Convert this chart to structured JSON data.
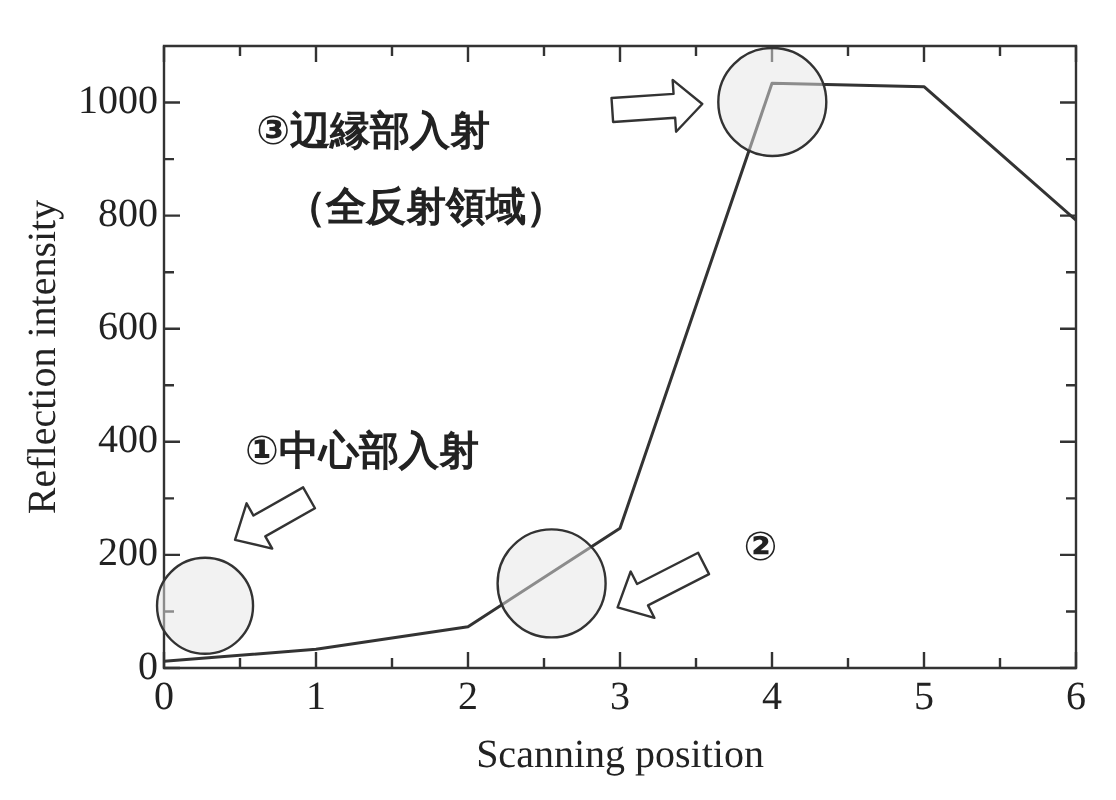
{
  "chart_data": {
    "type": "line",
    "xlabel": "Scanning position",
    "ylabel": "Reflection intensity",
    "x": [
      0,
      1,
      2,
      3,
      4,
      5,
      6
    ],
    "series": [
      {
        "color": "#333333",
        "values": [
          12,
          33,
          73,
          247,
          1034,
          1028,
          792
        ]
      }
    ],
    "xlim": [
      0,
      6
    ],
    "xticks": [
      0,
      {
        "value": 0.5,
        "label": null
      },
      1,
      {
        "value": 1.5,
        "label": null
      },
      2,
      {
        "value": 2.5,
        "label": null
      },
      3,
      {
        "value": 3.5,
        "label": null
      },
      4,
      {
        "value": 4.5,
        "label": null
      },
      5,
      {
        "value": 5.5,
        "label": null
      },
      6
    ],
    "ylim": [
      0,
      1100
    ],
    "yticks": [
      0,
      {
        "value": 100,
        "label": null
      },
      200,
      {
        "value": 300,
        "label": null
      },
      400,
      {
        "value": 500,
        "label": null
      },
      600,
      {
        "value": 700,
        "label": null
      },
      800,
      {
        "value": 900,
        "label": null
      },
      1000
    ],
    "grid": false,
    "legend": false,
    "marker": "none",
    "annotations": [
      "③辺縁部入射",
      "（全反射領域）",
      "①中心部入射",
      "②"
    ]
  }
}
